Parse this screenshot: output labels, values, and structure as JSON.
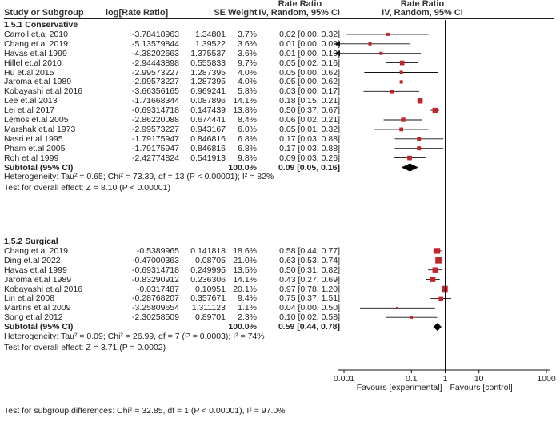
{
  "header": {
    "col_study": "Study or Subgroup",
    "col_logrr": "log[Rate Ratio]",
    "col_se": "SE",
    "col_weight": "Weight",
    "col_rr_title": "Rate Ratio",
    "col_rr_method": "IV, Random, 95% CI",
    "plot_title": "Rate Ratio",
    "plot_method": "IV, Random, 95% CI"
  },
  "chart_data": {
    "type": "forest",
    "x_scale": "log",
    "xlim": [
      0.001,
      1000
    ],
    "x_ticks": [
      "0.001",
      "0.1",
      "1",
      "10",
      "1000"
    ],
    "x_tick_values": [
      0.001,
      0.1,
      1,
      10,
      1000
    ],
    "favours_left": "Favours [experimental]",
    "favours_right": "Favours [control]",
    "line_of_no_effect": 1,
    "marker_color": "#c0262c",
    "groups": [
      {
        "title": "1.5.1 Conservative",
        "studies": [
          {
            "name": "Carroll et.al 2010",
            "logrr": "-3.78418963",
            "se": "1.34801",
            "weight": "3.7%",
            "ci_text": "0.02 [0.00, 0.32]",
            "est": 0.02,
            "lo": 0.0012,
            "hi": 0.32,
            "arrow_left": false
          },
          {
            "name": "Chang et.al 2019",
            "logrr": "-5.13579844",
            "se": "1.39522",
            "weight": "3.6%",
            "ci_text": "0.01 [0.00, 0.09]",
            "est": 0.0059,
            "lo": 0.0004,
            "hi": 0.09,
            "arrow_left": true
          },
          {
            "name": "Havas et.al 1999",
            "logrr": "-4.38202663",
            "se": "1.375537",
            "weight": "3.6%",
            "ci_text": "0.01 [0.00, 0.19]",
            "est": 0.0125,
            "lo": 0.0008,
            "hi": 0.19,
            "arrow_left": true
          },
          {
            "name": "Hillel et.al 2010",
            "logrr": "-2.94443898",
            "se": "0.555833",
            "weight": "9.7%",
            "ci_text": "0.05 [0.02, 0.16]",
            "est": 0.053,
            "lo": 0.018,
            "hi": 0.16,
            "arrow_left": false
          },
          {
            "name": "Hu et.al 2015",
            "logrr": "-2.99573227",
            "se": "1.287395",
            "weight": "4.0%",
            "ci_text": "0.05 [0.00, 0.62]",
            "est": 0.05,
            "lo": 0.004,
            "hi": 0.62,
            "arrow_left": false
          },
          {
            "name": "Jaroma et.al 1989",
            "logrr": "-2.99573227",
            "se": "1.287395",
            "weight": "4.0%",
            "ci_text": "0.05 [0.00, 0.62]",
            "est": 0.05,
            "lo": 0.004,
            "hi": 0.62,
            "arrow_left": false
          },
          {
            "name": "Kobayashi et.al 2016",
            "logrr": "-3.66356165",
            "se": "0.969241",
            "weight": "5.8%",
            "ci_text": "0.03 [0.00, 0.17]",
            "est": 0.026,
            "lo": 0.0038,
            "hi": 0.17,
            "arrow_left": false
          },
          {
            "name": "Lee et.al 2013",
            "logrr": "-1.71668344",
            "se": "0.087896",
            "weight": "14.1%",
            "ci_text": "0.18 [0.15, 0.21]",
            "est": 0.18,
            "lo": 0.15,
            "hi": 0.21,
            "arrow_left": false
          },
          {
            "name": "Lei et.al 2017",
            "logrr": "-0.69314718",
            "se": "0.147439",
            "weight": "13.8%",
            "ci_text": "0.50 [0.37, 0.67]",
            "est": 0.5,
            "lo": 0.37,
            "hi": 0.67,
            "arrow_left": false
          },
          {
            "name": "Lemos et.al 2005",
            "logrr": "-2.86220088",
            "se": "0.674441",
            "weight": "8.4%",
            "ci_text": "0.06 [0.02, 0.21]",
            "est": 0.057,
            "lo": 0.015,
            "hi": 0.21,
            "arrow_left": false
          },
          {
            "name": "Marshak et.al 1973",
            "logrr": "-2.99573227",
            "se": "0.943167",
            "weight": "6.0%",
            "ci_text": "0.05 [0.01, 0.32]",
            "est": 0.05,
            "lo": 0.0079,
            "hi": 0.32,
            "arrow_left": false
          },
          {
            "name": "Nasri et.al 1995",
            "logrr": "-1.79175947",
            "se": "0.846816",
            "weight": "6.8%",
            "ci_text": "0.17 [0.03, 0.88]",
            "est": 0.167,
            "lo": 0.032,
            "hi": 0.88,
            "arrow_left": false
          },
          {
            "name": "Pham et.al 2005",
            "logrr": "-1.79175947",
            "se": "0.846816",
            "weight": "6.8%",
            "ci_text": "0.17 [0.03, 0.88]",
            "est": 0.167,
            "lo": 0.032,
            "hi": 0.88,
            "arrow_left": false
          },
          {
            "name": "Roh et.al 1999",
            "logrr": "-2.42774824",
            "se": "0.541913",
            "weight": "9.8%",
            "ci_text": "0.09 [0.03, 0.26]",
            "est": 0.088,
            "lo": 0.03,
            "hi": 0.26,
            "arrow_left": false
          }
        ],
        "subtotal": {
          "label": "Subtotal (95% CI)",
          "weight": "100.0%",
          "ci_text": "0.09 [0.05, 0.16]",
          "est": 0.09,
          "lo": 0.05,
          "hi": 0.16
        },
        "heterogeneity": "Heterogeneity: Tau² = 0.65; Chi² = 73.39, df = 13 (P < 0.00001); I² = 82%",
        "overall_effect": "Test for overall effect: Z = 8.10 (P < 0.00001)"
      },
      {
        "title": "1.5.2 Surgical",
        "studies": [
          {
            "name": "Chang et.al 2019",
            "logrr": "-0.5389965",
            "se": "0.141818",
            "weight": "18.6%",
            "ci_text": "0.58 [0.44, 0.77]",
            "est": 0.58,
            "lo": 0.44,
            "hi": 0.77,
            "arrow_left": false
          },
          {
            "name": "Ding et.al 2022",
            "logrr": "-0.47000363",
            "se": "0.08705",
            "weight": "21.0%",
            "ci_text": "0.63 [0.53, 0.74]",
            "est": 0.63,
            "lo": 0.53,
            "hi": 0.74,
            "arrow_left": false
          },
          {
            "name": "Havas et.al 1999",
            "logrr": "-0.69314718",
            "se": "0.249995",
            "weight": "13.5%",
            "ci_text": "0.50 [0.31, 0.82]",
            "est": 0.5,
            "lo": 0.31,
            "hi": 0.82,
            "arrow_left": false
          },
          {
            "name": "Jaroma et.al 1989",
            "logrr": "-0.83290912",
            "se": "0.236306",
            "weight": "14.1%",
            "ci_text": "0.43 [0.27, 0.69]",
            "est": 0.43,
            "lo": 0.27,
            "hi": 0.69,
            "arrow_left": false
          },
          {
            "name": "Kobayashi et.al 2016",
            "logrr": "-0.0317487",
            "se": "0.10951",
            "weight": "20.1%",
            "ci_text": "0.97 [0.78, 1.20]",
            "est": 0.97,
            "lo": 0.78,
            "hi": 1.2,
            "arrow_left": false
          },
          {
            "name": "Lin et.al 2008",
            "logrr": "-0.28768207",
            "se": "0.357671",
            "weight": "9.4%",
            "ci_text": "0.75 [0.37, 1.51]",
            "est": 0.75,
            "lo": 0.37,
            "hi": 1.51,
            "arrow_left": false
          },
          {
            "name": "Martins et.al 2009",
            "logrr": "-3.25809654",
            "se": "1.311123",
            "weight": "1.1%",
            "ci_text": "0.04 [0.00, 0.50]",
            "est": 0.038,
            "lo": 0.003,
            "hi": 0.5,
            "arrow_left": false
          },
          {
            "name": "Song et.al 2012",
            "logrr": "-2.30258509",
            "se": "0.89701",
            "weight": "2.3%",
            "ci_text": "0.10 [0.02, 0.58]",
            "est": 0.1,
            "lo": 0.017,
            "hi": 0.58,
            "arrow_left": false
          }
        ],
        "subtotal": {
          "label": "Subtotal (95% CI)",
          "weight": "100.0%",
          "ci_text": "0.59 [0.44, 0.78]",
          "est": 0.59,
          "lo": 0.44,
          "hi": 0.78
        },
        "heterogeneity": "Heterogeneity: Tau² = 0.09; Chi² = 26.99, df = 7 (P = 0.0003); I² = 74%",
        "overall_effect": "Test for overall effect: Z = 3.71 (P = 0.0002)"
      }
    ],
    "subgroup_test": "Test for subgroup differences: Chi² = 32.85, df = 1 (P < 0.00001), I² = 97.0%"
  }
}
